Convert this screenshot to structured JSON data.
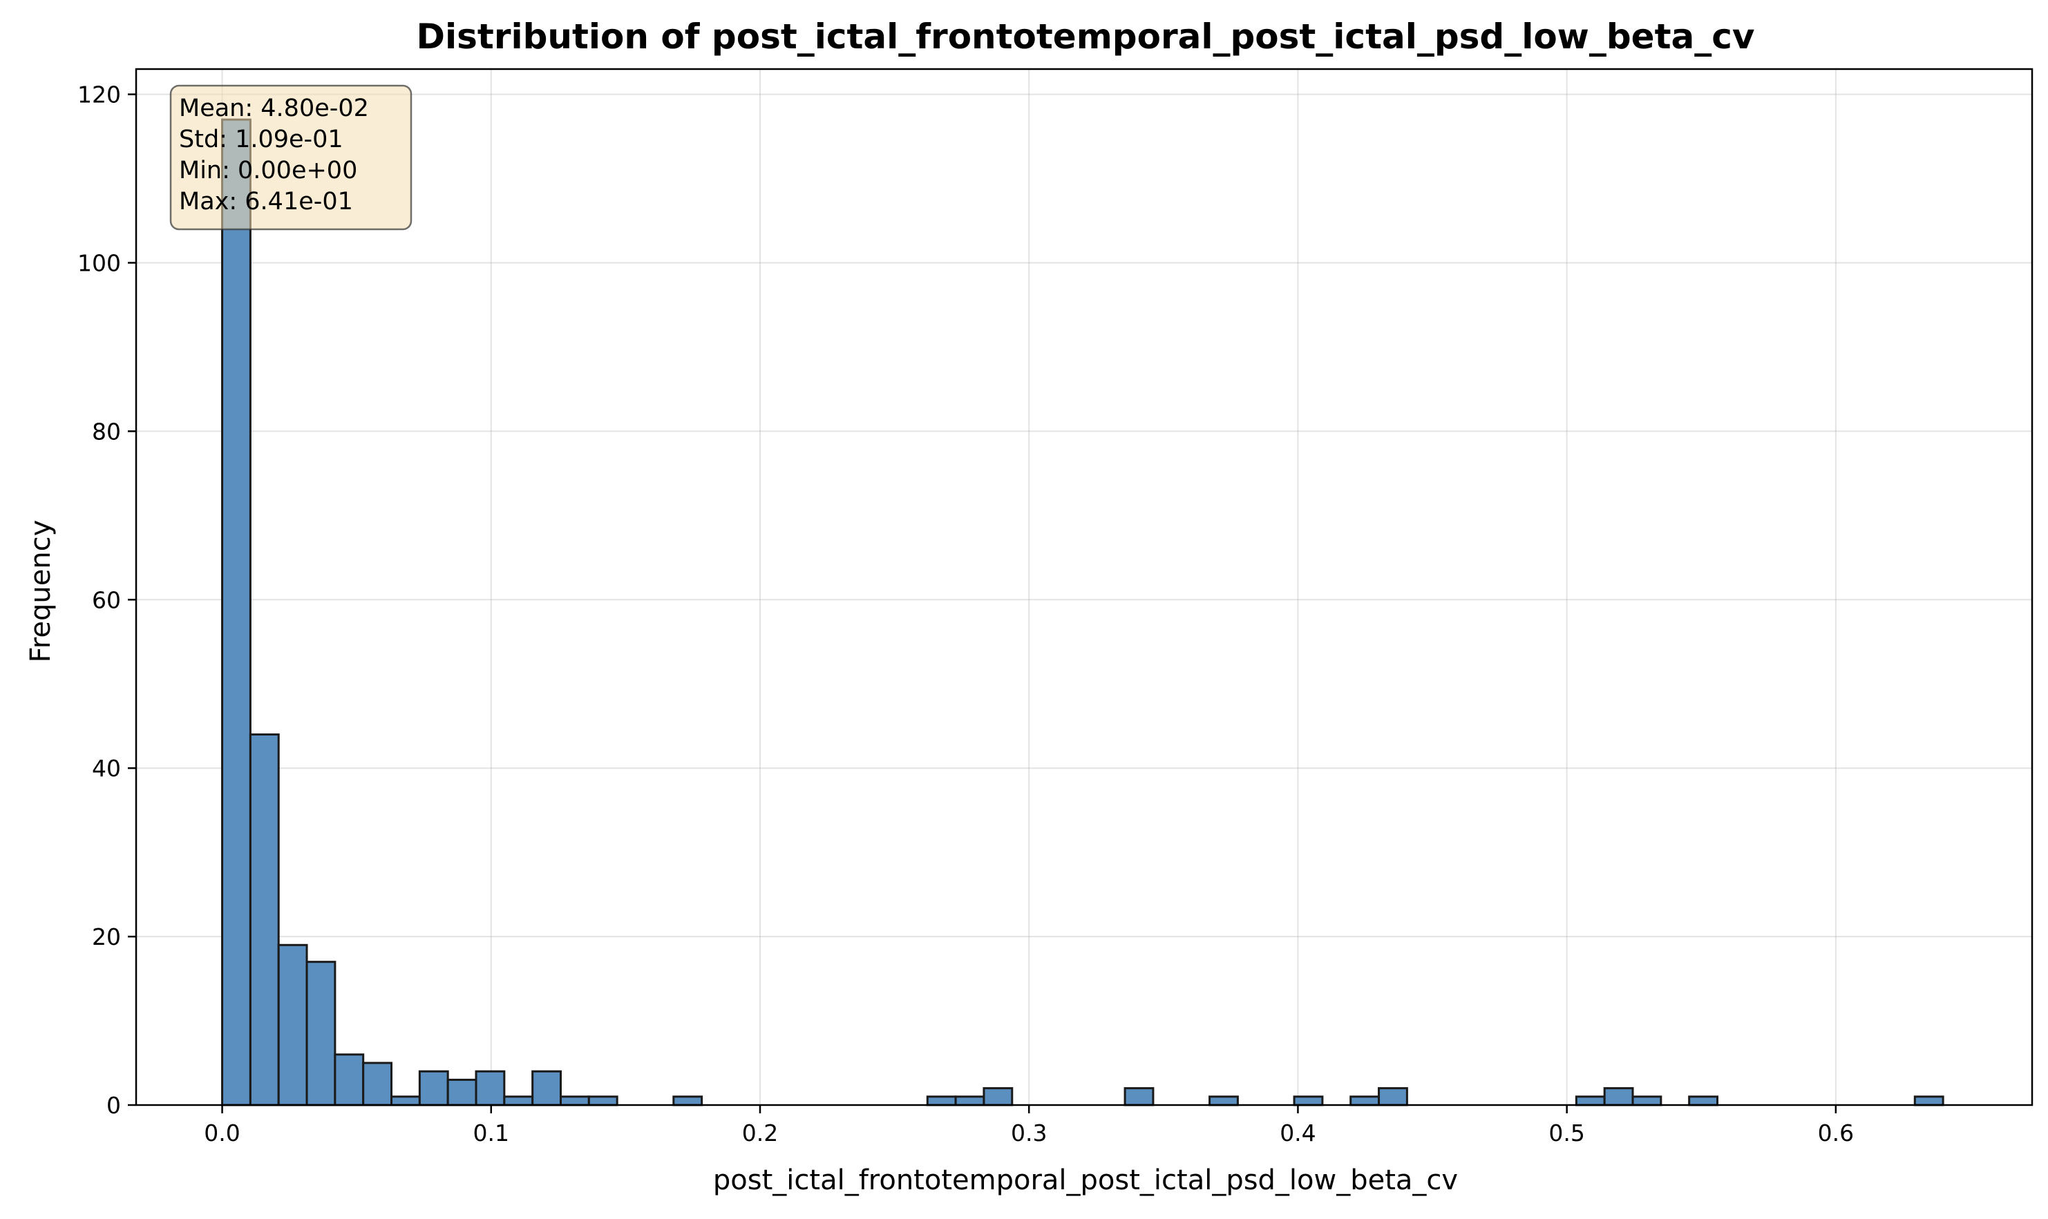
{
  "chart_data": {
    "type": "bar",
    "title": "Distribution of post_ictal_frontotemporal_post_ictal_psd_low_beta_cv",
    "xlabel": "post_ictal_frontotemporal_post_ictal_psd_low_beta_cv",
    "ylabel": "Frequency",
    "xlim": [
      -0.032,
      0.673
    ],
    "ylim": [
      0,
      123
    ],
    "xticks": [
      0.0,
      0.1,
      0.2,
      0.3,
      0.4,
      0.5,
      0.6
    ],
    "xtick_labels": [
      "0.0",
      "0.1",
      "0.2",
      "0.3",
      "0.4",
      "0.5",
      "0.6"
    ],
    "yticks": [
      0,
      20,
      40,
      60,
      80,
      100,
      120
    ],
    "ytick_labels": [
      "0",
      "20",
      "40",
      "60",
      "80",
      "100",
      "120"
    ],
    "grid": true,
    "bin_start": 0.0,
    "bin_width": 0.01049,
    "counts": [
      117,
      44,
      19,
      17,
      6,
      5,
      1,
      4,
      3,
      4,
      1,
      4,
      1,
      1,
      0,
      0,
      1,
      0,
      0,
      0,
      0,
      0,
      0,
      0,
      0,
      1,
      1,
      2,
      0,
      0,
      0,
      0,
      2,
      0,
      0,
      1,
      0,
      0,
      1,
      0,
      1,
      2,
      0,
      0,
      0,
      0,
      0,
      0,
      1,
      2,
      1,
      0,
      1,
      0,
      0,
      0,
      0,
      0,
      0,
      0,
      1
    ],
    "bar_color": "#5b8fbf",
    "edge_color": "#1a1a1a",
    "stats_box": {
      "lines": [
        "Mean: 4.80e-02",
        "Std: 1.09e-01",
        "Min: 0.00e+00",
        "Max: 6.41e-01"
      ],
      "placement": "top-left",
      "face_color": "#f5deb3",
      "edge_color": "#333333"
    }
  }
}
